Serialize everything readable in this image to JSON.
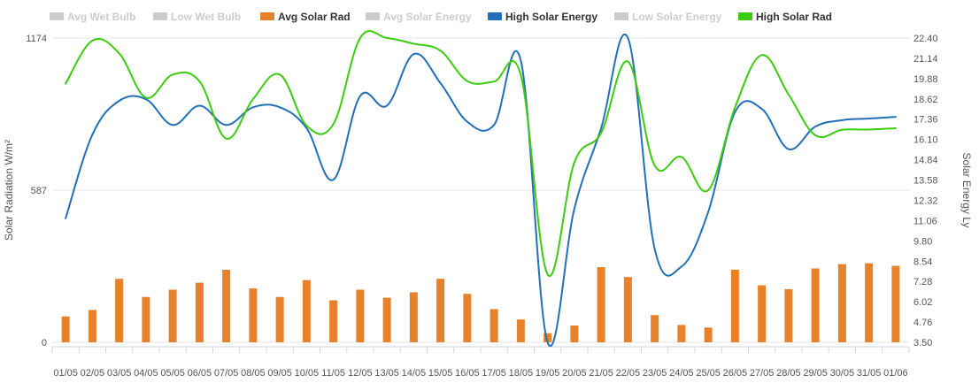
{
  "chart_data": {
    "type": "bar",
    "legend": [
      {
        "label": "Avg Wet Bulb",
        "color": "#cccccc",
        "active": false
      },
      {
        "label": "Low Wet Bulb",
        "color": "#cccccc",
        "active": false
      },
      {
        "label": "Avg Solar Rad",
        "color": "#e8822a",
        "active": true
      },
      {
        "label": "Avg Solar Energy",
        "color": "#cccccc",
        "active": false
      },
      {
        "label": "High Solar Energy",
        "color": "#2270b8",
        "active": true
      },
      {
        "label": "Low Solar Energy",
        "color": "#cccccc",
        "active": false
      },
      {
        "label": "High Solar Rad",
        "color": "#3ccc0e",
        "active": true
      }
    ],
    "categories": [
      "01/05",
      "02/05",
      "03/05",
      "04/05",
      "05/05",
      "06/05",
      "07/05",
      "08/05",
      "09/05",
      "10/05",
      "11/05",
      "12/05",
      "13/05",
      "14/05",
      "15/05",
      "16/05",
      "17/05",
      "18/05",
      "19/05",
      "20/05",
      "21/05",
      "22/05",
      "23/05",
      "24/05",
      "25/05",
      "26/05",
      "27/05",
      "28/05",
      "29/05",
      "30/05",
      "31/05",
      "01/06"
    ],
    "y_left": {
      "label": "Solar Radiation W/m²",
      "ticks": [
        "0",
        "587",
        "1174"
      ],
      "range": [
        0,
        1174
      ]
    },
    "y_right": {
      "label": "Solar Energy Ly",
      "ticks": [
        "3.50",
        "4.76",
        "6.02",
        "7.28",
        "8.54",
        "9.80",
        "11.06",
        "12.32",
        "13.58",
        "14.84",
        "16.10",
        "17.36",
        "18.62",
        "19.88",
        "21.14",
        "22.40"
      ],
      "range": [
        3.5,
        22.4
      ]
    },
    "series": [
      {
        "name": "Avg Solar Rad",
        "type": "bar",
        "axis": "left",
        "color": "#e8822a",
        "values": [
          100,
          125,
          245,
          175,
          203,
          230,
          280,
          208,
          175,
          240,
          162,
          203,
          172,
          193,
          245,
          187,
          128,
          88,
          35,
          65,
          290,
          252,
          105,
          67,
          57,
          280,
          220,
          205,
          285,
          302,
          305,
          295
        ]
      },
      {
        "name": "High Solar Energy",
        "type": "line",
        "axis": "right",
        "color": "#2270b8",
        "values": [
          11.2,
          16.4,
          18.5,
          18.6,
          17.0,
          18.2,
          17.0,
          18.1,
          18.1,
          16.8,
          13.6,
          18.8,
          18.2,
          21.4,
          19.6,
          17.2,
          17.0,
          21.0,
          3.5,
          11.8,
          16.8,
          22.4,
          9.3,
          8.2,
          11.6,
          17.8,
          18.0,
          15.5,
          16.9,
          17.3,
          17.4,
          17.5
        ]
      },
      {
        "name": "High Solar Rad",
        "type": "line",
        "axis": "left",
        "color": "#3ccc0e",
        "values": [
          998,
          1164,
          1115,
          944,
          1033,
          1007,
          786,
          938,
          1033,
          836,
          842,
          1174,
          1174,
          1152,
          1125,
          1008,
          1006,
          1031,
          262,
          694,
          808,
          1083,
          682,
          715,
          587,
          906,
          1108,
          956,
          799,
          820,
          821,
          826
        ]
      }
    ]
  }
}
